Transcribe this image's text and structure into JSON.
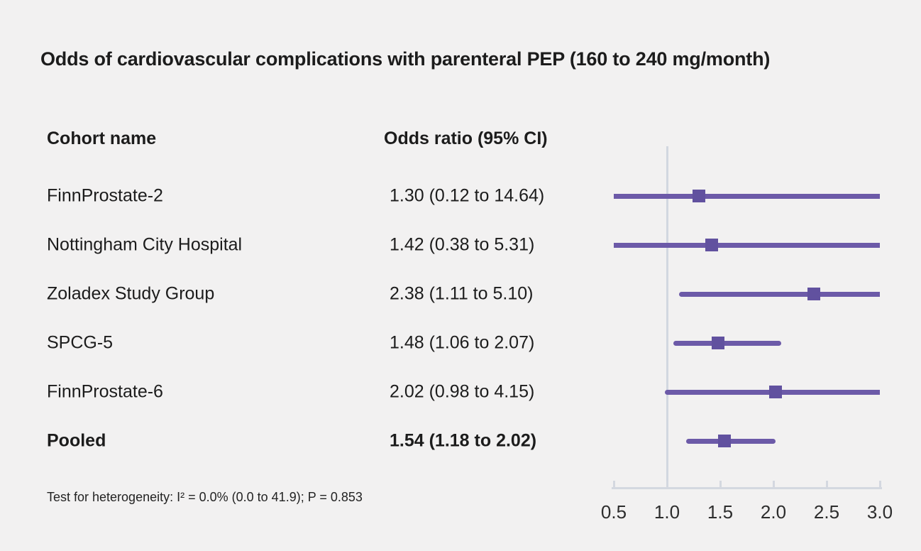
{
  "title": "Odds of cardiovascular complications with parenteral PEP (160 to 240 mg/month)",
  "table": {
    "col_cohort": "Cohort name",
    "col_or": "Odds ratio (95% CI)"
  },
  "footer_note": "Test for heterogeneity: I² = 0.0% (0.0 to 41.9); P = 0.853",
  "colors": {
    "background": "#f2f1f1",
    "ci_line": "#6c5aa8",
    "marker": "#61519f",
    "axis_line": "#d4d8e0",
    "reference_line": "#d2d7e0",
    "text": "#1c1c1c"
  },
  "chart_data": {
    "type": "forest",
    "title": "Odds of cardiovascular complications with parenteral PEP (160 to 240 mg/month)",
    "xlabel": "Odds ratio (95% CI)",
    "axis": {
      "min": 0.5,
      "max": 3.0,
      "ticks": [
        0.5,
        1.0,
        1.5,
        2.0,
        2.5,
        3.0
      ],
      "tick_labels": [
        "0.5",
        "1.0",
        "1.5",
        "2.0",
        "2.5",
        "3.0"
      ],
      "reference_line": 1.0,
      "grid": false
    },
    "rows": [
      {
        "name": "FinnProstate-2",
        "or": 1.3,
        "ci_low": 0.12,
        "ci_high": 14.64,
        "label": "1.30 (0.12 to 14.64)",
        "bold": false
      },
      {
        "name": "Nottingham City Hospital",
        "or": 1.42,
        "ci_low": 0.38,
        "ci_high": 5.31,
        "label": "1.42 (0.38 to 5.31)",
        "bold": false
      },
      {
        "name": "Zoladex Study Group",
        "or": 2.38,
        "ci_low": 1.11,
        "ci_high": 5.1,
        "label": "2.38 (1.11 to 5.10)",
        "bold": false
      },
      {
        "name": "SPCG-5",
        "or": 1.48,
        "ci_low": 1.06,
        "ci_high": 2.07,
        "label": "1.48 (1.06 to 2.07)",
        "bold": false
      },
      {
        "name": "FinnProstate-6",
        "or": 2.02,
        "ci_low": 0.98,
        "ci_high": 4.15,
        "label": "2.02 (0.98 to 4.15)",
        "bold": false
      },
      {
        "name": "Pooled",
        "or": 1.54,
        "ci_low": 1.18,
        "ci_high": 2.02,
        "label": "1.54 (1.18 to 2.02)",
        "bold": true
      }
    ],
    "heterogeneity": "Test for heterogeneity: I² = 0.0% (0.0 to 41.9); P = 0.853"
  }
}
